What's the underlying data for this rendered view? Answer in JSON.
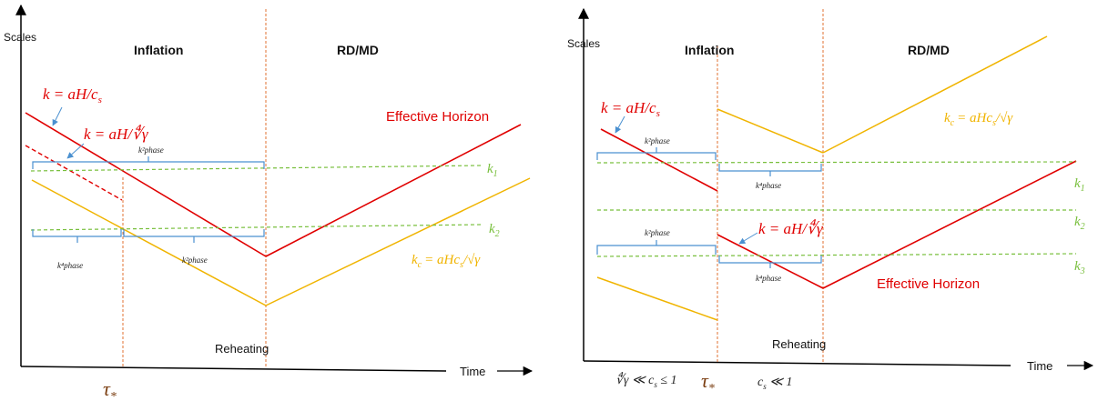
{
  "left": {
    "y_axis_label": "Scales",
    "x_axis_label": "Time",
    "region_inflation": "Inflation",
    "region_rdmd": "RD/MD",
    "reheating": "Reheating",
    "tau_star": "τ",
    "tau_star_sub": "*",
    "eq_k_ah_cs": "k = aH/c",
    "eq_k_ah_cs_sub": "s",
    "eq_k_ah_gamma": "k = aH/∜γ",
    "effective_horizon": "Effective Horizon",
    "k1": "k",
    "k1_sub": "1",
    "k2": "k",
    "k2_sub": "2",
    "kc": "k",
    "kc_sub": "c",
    "kc_rhs": "= aHc",
    "kc_rhs_sub": "s",
    "kc_rhs_tail": "/√γ",
    "phase_k2_top": "k²phase",
    "phase_k4": "k⁴phase",
    "phase_k2_bottom": "k²phase"
  },
  "right": {
    "y_axis_label": "Scales",
    "x_axis_label": "Time",
    "region_inflation": "Inflation",
    "region_rdmd": "RD/MD",
    "reheating": "Reheating",
    "tau_star": "τ",
    "tau_star_sub": "*",
    "cond_left": "∜γ ≪ c",
    "cond_left_sub": "s",
    "cond_left_tail": " ≤ 1",
    "cond_right": "c",
    "cond_right_sub": "s",
    "cond_right_tail": " ≪ 1",
    "eq_k_ah_cs": "k = aH/c",
    "eq_k_ah_cs_sub": "s",
    "eq_k_ah_gamma": "k = aH/∜γ",
    "effective_horizon": "Effective Horizon",
    "kc": "k",
    "kc_sub": "c",
    "kc_rhs": "= aHc",
    "kc_rhs_sub": "s",
    "kc_rhs_tail": "/√γ",
    "k1": "k",
    "k1_sub": "1",
    "k2": "k",
    "k2_sub": "2",
    "k3": "k",
    "k3_sub": "3",
    "phase_k2_top": "k²phase",
    "phase_k4_top": "k⁴phase",
    "phase_k2_bottom": "k²phase",
    "phase_k4_bottom": "k⁴phase"
  },
  "colors": {
    "horizon": "#e00000",
    "kc_line": "#f0b400",
    "modes": "#78bf3c",
    "guides": "#e07030",
    "braces": "#4a90d0",
    "axes": "#000000"
  }
}
